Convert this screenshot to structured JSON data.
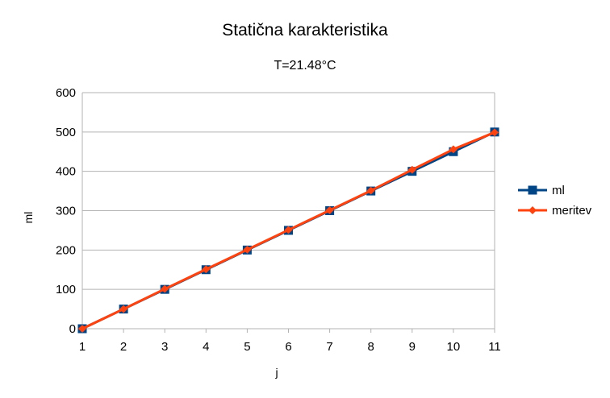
{
  "chart_data": {
    "type": "line",
    "title": "Statična karakteristika",
    "subtitle": "T=21.48°C",
    "xlabel": "j",
    "ylabel": "ml",
    "categories": [
      "1",
      "2",
      "3",
      "4",
      "5",
      "6",
      "7",
      "8",
      "9",
      "10",
      "11"
    ],
    "ylim": [
      0,
      600
    ],
    "yticks": [
      "0",
      "100",
      "200",
      "300",
      "400",
      "500",
      "600"
    ],
    "grid": true,
    "legend_position": "right",
    "series": [
      {
        "name": "ml",
        "color": "#004586",
        "marker": "square",
        "values": [
          0,
          50,
          100,
          150,
          200,
          250,
          300,
          350,
          400,
          450,
          500
        ]
      },
      {
        "name": "meritev",
        "color": "#ff420e",
        "marker": "diamond",
        "values": [
          0,
          50,
          101,
          151,
          201,
          251,
          301,
          351,
          404,
          456,
          499
        ]
      }
    ]
  }
}
